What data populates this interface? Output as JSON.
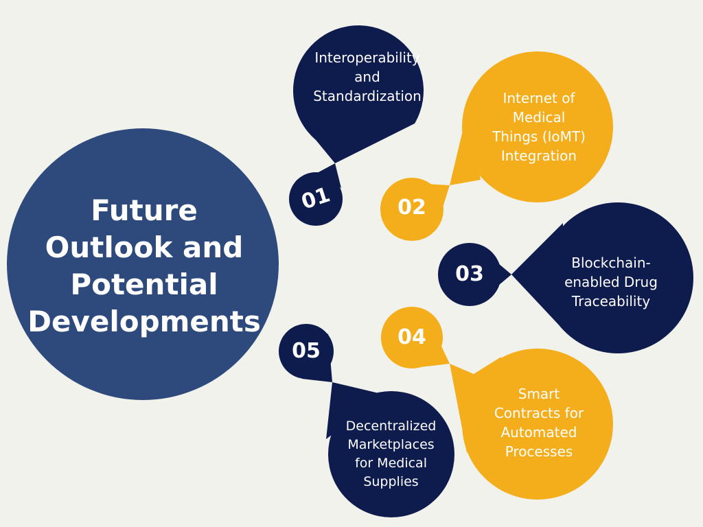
{
  "colors": {
    "background": "#f2f2ec",
    "main_circle": "#2e4a7d",
    "navy": "#0e1b4d",
    "gold": "#f5ae1b"
  },
  "title": {
    "lines": [
      "Future",
      "Outlook and",
      "Potential",
      "Developments"
    ]
  },
  "items": [
    {
      "number": "01",
      "lines": [
        "Interoperability",
        "and",
        "Standardization"
      ],
      "color": "navy"
    },
    {
      "number": "02",
      "lines": [
        "Internet of",
        "Medical",
        "Things (IoMT)",
        "Integration"
      ],
      "color": "gold"
    },
    {
      "number": "03",
      "lines": [
        "Blockchain-",
        "enabled Drug",
        "Traceability"
      ],
      "color": "navy"
    },
    {
      "number": "04",
      "lines": [
        "Smart",
        "Contracts for",
        "Automated",
        "Processes"
      ],
      "color": "gold"
    },
    {
      "number": "05",
      "lines": [
        "Decentralized",
        "Marketplaces",
        "for Medical",
        "Supplies"
      ],
      "color": "navy"
    }
  ]
}
